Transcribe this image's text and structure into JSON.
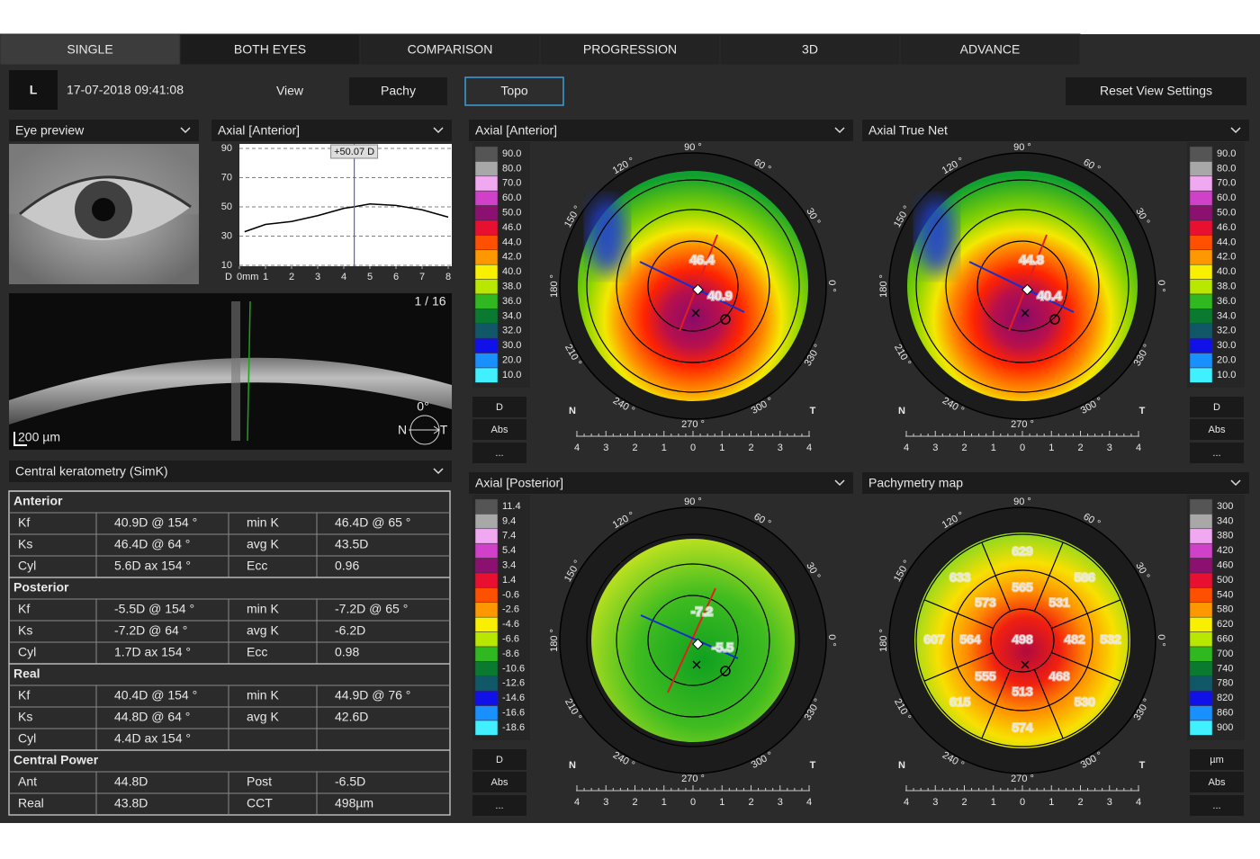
{
  "tabs": [
    "SINGLE",
    "BOTH EYES",
    "COMPARISON",
    "PROGRESSION",
    "3D",
    "ADVANCE"
  ],
  "header": {
    "eye": "L",
    "datetime": "17-07-2018 09:41:08",
    "view": "View",
    "buttons": [
      "Pachy",
      "Topo"
    ],
    "reset": "Reset View Settings"
  },
  "eye_preview": {
    "title": "Eye preview"
  },
  "chart_data": {
    "type": "line",
    "title": "Axial [Anterior]",
    "y_unit": "D",
    "x": [
      0.2,
      1,
      2,
      3,
      4,
      4.4,
      5,
      6,
      7,
      8
    ],
    "values": [
      33,
      38,
      40,
      44,
      49,
      50.07,
      52,
      51,
      48,
      43
    ],
    "color": "#000000",
    "xlim": [
      0,
      8
    ],
    "ylim": [
      10,
      90
    ],
    "xticks": [
      {
        "value": 0,
        "label": "0mm"
      },
      1,
      2,
      3,
      4,
      5,
      6,
      7,
      8
    ],
    "yticks": [
      10,
      30,
      50,
      70,
      90
    ],
    "grid": true,
    "cursor": {
      "x": 4.4,
      "label": "+50.07 D",
      "color": "#5060e0"
    }
  },
  "oct": {
    "frame": "1 / 16",
    "scale": "200 µm",
    "angle": "0°",
    "nasal": "N",
    "temporal": "T"
  },
  "keratometry": {
    "title": "Central keratometry (SimK)",
    "sections": [
      {
        "name": "Anterior",
        "rows": [
          [
            "Kf",
            "40.9D @ 154 °",
            "min K",
            "46.4D @ 65 °"
          ],
          [
            "Ks",
            "46.4D @ 64 °",
            "avg K",
            "43.5D"
          ],
          [
            "Cyl",
            "5.6D ax 154 °",
            "Ecc",
            "0.96"
          ]
        ]
      },
      {
        "name": "Posterior",
        "rows": [
          [
            "Kf",
            "-5.5D @ 154 °",
            "min K",
            "-7.2D @ 65 °"
          ],
          [
            "Ks",
            "-7.2D @ 64 °",
            "avg K",
            "-6.2D"
          ],
          [
            "Cyl",
            "1.7D ax 154 °",
            "Ecc",
            "0.98"
          ]
        ]
      },
      {
        "name": "Real",
        "rows": [
          [
            "Kf",
            "40.4D @ 154 °",
            "min K",
            "44.9D @ 76 °"
          ],
          [
            "Ks",
            "44.8D @ 64 °",
            "avg K",
            "42.6D"
          ],
          [
            "Cyl",
            "4.4D ax 154 °"
          ]
        ]
      },
      {
        "name": "Central Power",
        "rows": [
          [
            "Ant",
            "44.8D",
            "Post",
            "-6.5D"
          ],
          [
            "Real",
            "43.8D",
            "CCT",
            "498µm"
          ]
        ]
      }
    ]
  },
  "scale_colors": [
    "#555555",
    "#a8a8a8",
    "#f0a8f0",
    "#d040c8",
    "#8c1070",
    "#e81030",
    "#ff5000",
    "#ff9800",
    "#f8f000",
    "#b8e800",
    "#30b820",
    "#0a7a30",
    "#105868",
    "#1010e8",
    "#1890ff",
    "#40f0ff"
  ],
  "polar": {
    "labels": [
      "0 °",
      "30 °",
      "60 °",
      "90 °",
      "120 °",
      "150 °",
      "180 °",
      "210 °",
      "240 °",
      "270 °",
      "300 °",
      "330 °"
    ],
    "nasal": "N",
    "temporal": "T",
    "ticks": [
      4,
      3,
      2,
      1,
      0,
      1,
      2,
      3,
      4
    ]
  },
  "maps": [
    {
      "title": "Axial [Anterior]",
      "scale_side": "left",
      "scale": [
        "90.0",
        "80.0",
        "70.0",
        "60.0",
        "50.0",
        "46.0",
        "44.0",
        "42.0",
        "40.0",
        "38.0",
        "36.0",
        "34.0",
        "32.0",
        "30.0",
        "20.0",
        "10.0"
      ],
      "unit": "D",
      "mode": "Abs",
      "more": "...",
      "labels": [
        "46.4",
        "40.9"
      ]
    },
    {
      "title": "Axial True Net",
      "scale_side": "right",
      "scale": [
        "90.0",
        "80.0",
        "70.0",
        "60.0",
        "50.0",
        "46.0",
        "44.0",
        "42.0",
        "40.0",
        "38.0",
        "36.0",
        "34.0",
        "32.0",
        "30.0",
        "20.0",
        "10.0"
      ],
      "unit": "D",
      "mode": "Abs",
      "more": "...",
      "labels": [
        "44.8",
        "40.4"
      ]
    },
    {
      "title": "Axial [Posterior]",
      "scale_side": "left",
      "scale": [
        "11.4",
        "9.4",
        "7.4",
        "5.4",
        "3.4",
        "1.4",
        "-0.6",
        "-2.6",
        "-4.6",
        "-6.6",
        "-8.6",
        "-10.6",
        "-12.6",
        "-14.6",
        "-16.6",
        "-18.6"
      ],
      "unit": "D",
      "mode": "Abs",
      "more": "...",
      "labels": [
        "-7.2",
        "-5.5"
      ]
    },
    {
      "title": "Pachymetry map",
      "scale_side": "right",
      "scale": [
        "300",
        "340",
        "380",
        "420",
        "460",
        "500",
        "540",
        "580",
        "620",
        "660",
        "700",
        "740",
        "780",
        "820",
        "860",
        "900"
      ],
      "unit": "µm",
      "mode": "Abs",
      "more": "...",
      "sectors": {
        "center": 498,
        "inner": [
          565,
          531,
          482,
          468,
          513,
          555,
          564,
          573
        ],
        "outer": [
          629,
          586,
          532,
          530,
          574,
          615,
          607,
          633
        ]
      }
    }
  ]
}
